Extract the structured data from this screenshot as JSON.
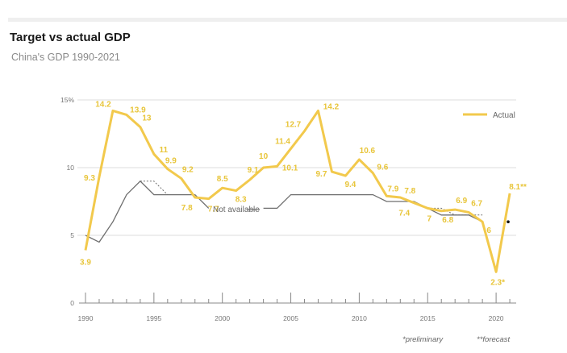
{
  "header": {
    "title": "Target vs actual GDP",
    "subtitle": "China's GDP 1990-2021"
  },
  "chart_data": {
    "type": "line",
    "title": "Target vs actual GDP",
    "subtitle": "China's GDP 1990-2021",
    "xlabel": "",
    "ylabel": "",
    "xlim": [
      1990,
      2021
    ],
    "ylim": [
      0,
      15
    ],
    "y_ticks": [
      0,
      5,
      10,
      15
    ],
    "y_tick_labels": [
      "0",
      "5",
      "10",
      "15%"
    ],
    "x_ticks": [
      1990,
      1995,
      2000,
      2005,
      2010,
      2015,
      2020
    ],
    "x_tick_labels": [
      "1990",
      "1995",
      "2000",
      "2005",
      "2010",
      "2015",
      "2020"
    ],
    "grid": true,
    "legend": {
      "position": "top-right",
      "entries": [
        {
          "name": "Actual",
          "color": "#f2c94c"
        }
      ]
    },
    "colors": {
      "actual": "#f2c94c",
      "actual_label": "#e8c53a",
      "target": "#6e6e6e",
      "grid": "#dddddd",
      "axis": "#888888"
    },
    "series": [
      {
        "name": "Actual",
        "x": [
          1990,
          1991,
          1992,
          1993,
          1994,
          1995,
          1996,
          1997,
          1998,
          1999,
          2000,
          2001,
          2002,
          2003,
          2004,
          2005,
          2006,
          2007,
          2008,
          2009,
          2010,
          2011,
          2012,
          2013,
          2014,
          2015,
          2016,
          2017,
          2018,
          2019,
          2020,
          2021
        ],
        "values": [
          3.9,
          9.3,
          14.2,
          13.9,
          13,
          11,
          9.9,
          9.2,
          7.8,
          7.7,
          8.5,
          8.3,
          9.1,
          10,
          10.1,
          11.4,
          12.7,
          14.2,
          9.7,
          9.4,
          10.6,
          9.6,
          7.9,
          7.8,
          7.4,
          7,
          6.8,
          6.9,
          6.7,
          6,
          2.3,
          8.1
        ],
        "labels": [
          "3.9",
          "9.3",
          "14.2",
          "13.9",
          "13",
          "11",
          "9.9",
          "9.2",
          "7.8",
          "7.7",
          "8.5",
          "8.3",
          "9.1",
          "10",
          "10.1",
          "11.4",
          "12.7",
          "14.2",
          "9.7",
          "9.4",
          "10.6",
          "9.6",
          "7.9",
          "7.8",
          "7.4",
          "7",
          "6.8",
          "6.9",
          "6.7",
          "6",
          "2.3*",
          "8.1**"
        ]
      },
      {
        "name": "Target",
        "segments": [
          {
            "x": [
              1990,
              1991,
              1992,
              1993,
              1994,
              1995,
              1996,
              1997,
              1998,
              1999
            ],
            "values": [
              5,
              4.5,
              6,
              8,
              9,
              8,
              8,
              8,
              8,
              7
            ]
          },
          {
            "x": [
              2003,
              2004,
              2005,
              2006,
              2007,
              2008,
              2009,
              2010,
              2011,
              2012,
              2013,
              2014,
              2015,
              2016,
              2017,
              2018,
              2019
            ],
            "values": [
              7,
              7,
              8,
              8,
              8,
              8,
              8,
              8,
              8,
              7.5,
              7.5,
              7.5,
              7,
              6.5,
              6.5,
              6.5,
              6
            ]
          }
        ]
      },
      {
        "name": "Target (upper range)",
        "style": "dashed",
        "segments": [
          {
            "x": [
              1994,
              1995,
              1996
            ],
            "values": [
              9,
              9,
              8
            ]
          },
          {
            "x": [
              2015,
              2016,
              2017,
              2018,
              2019
            ],
            "values": [
              7,
              7,
              6.5,
              6.5,
              6.5
            ]
          }
        ]
      }
    ],
    "annotations": [
      {
        "text": "Not available",
        "x": 2001.5,
        "y": 7
      },
      {
        "text": "*preliminary",
        "position": "bottom-right"
      },
      {
        "text": "**forecast",
        "position": "bottom-right"
      }
    ],
    "markers": [
      {
        "x": 2021,
        "y": 6,
        "shape": "dot"
      }
    ]
  }
}
